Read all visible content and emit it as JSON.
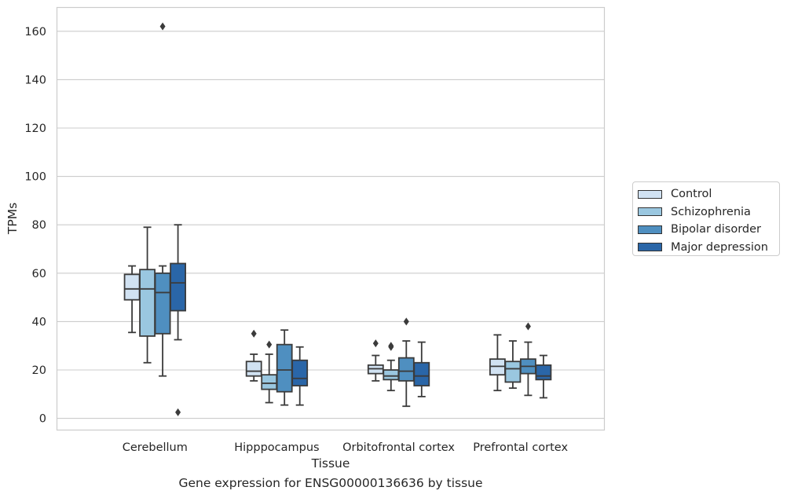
{
  "chart_data": {
    "type": "box",
    "xlabel": "Tissue",
    "ylabel": "TPMs",
    "caption": "Gene expression for ENSG00000136636 by tissue",
    "ylim": [
      -5,
      170
    ],
    "yticks": [
      0,
      20,
      40,
      60,
      80,
      100,
      120,
      140,
      160
    ],
    "grid": true,
    "legend_position": "right",
    "categories": [
      "Cerebellum",
      "Hipppocampus",
      "Orbitofrontal cortex",
      "Prefrontal cortex"
    ],
    "series": [
      {
        "name": "Control",
        "color": "#d1e2f2",
        "boxes": [
          {
            "whislo": 35.5,
            "q1": 49,
            "med": 53.5,
            "q3": 59.5,
            "whishi": 63,
            "fliers": []
          },
          {
            "whislo": 15.5,
            "q1": 17.5,
            "med": 19.5,
            "q3": 23.5,
            "whishi": 26.5,
            "fliers": [
              35
            ]
          },
          {
            "whislo": 15.5,
            "q1": 18.5,
            "med": 20.5,
            "q3": 22,
            "whishi": 26,
            "fliers": [
              31
            ]
          },
          {
            "whislo": 11.5,
            "q1": 18,
            "med": 21.5,
            "q3": 24.5,
            "whishi": 34.5,
            "fliers": []
          }
        ]
      },
      {
        "name": "Schizophrenia",
        "color": "#9ac7e0",
        "boxes": [
          {
            "whislo": 23,
            "q1": 34,
            "med": 53.5,
            "q3": 61.5,
            "whishi": 79,
            "fliers": []
          },
          {
            "whislo": 6.5,
            "q1": 12,
            "med": 14.5,
            "q3": 18,
            "whishi": 26.5,
            "fliers": [
              30.5
            ]
          },
          {
            "whislo": 11.5,
            "q1": 16,
            "med": 17.5,
            "q3": 20,
            "whishi": 24,
            "fliers": [
              30,
              29.5
            ]
          },
          {
            "whislo": 12.5,
            "q1": 15,
            "med": 20.5,
            "q3": 23.5,
            "whishi": 32,
            "fliers": []
          }
        ]
      },
      {
        "name": "Bipolar disorder",
        "color": "#4f8fc0",
        "boxes": [
          {
            "whislo": 17.5,
            "q1": 35,
            "med": 52,
            "q3": 60,
            "whishi": 63,
            "fliers": [
              162
            ]
          },
          {
            "whislo": 5.5,
            "q1": 11,
            "med": 20,
            "q3": 30.5,
            "whishi": 36.5,
            "fliers": []
          },
          {
            "whislo": 5,
            "q1": 15.5,
            "med": 19.5,
            "q3": 25,
            "whishi": 32,
            "fliers": [
              40
            ]
          },
          {
            "whislo": 9.5,
            "q1": 18.5,
            "med": 21.5,
            "q3": 24.5,
            "whishi": 31.5,
            "fliers": [
              38
            ]
          }
        ]
      },
      {
        "name": "Major depression",
        "color": "#2a66a8",
        "boxes": [
          {
            "whislo": 32.5,
            "q1": 44.5,
            "med": 56,
            "q3": 64,
            "whishi": 80,
            "fliers": [
              2.5
            ]
          },
          {
            "whislo": 5.5,
            "q1": 13.5,
            "med": 16.5,
            "q3": 24,
            "whishi": 29.5,
            "fliers": []
          },
          {
            "whislo": 9,
            "q1": 13.5,
            "med": 17.5,
            "q3": 23,
            "whishi": 31.5,
            "fliers": []
          },
          {
            "whislo": 8.5,
            "q1": 16,
            "med": 17.5,
            "q3": 22,
            "whishi": 26,
            "fliers": []
          }
        ]
      }
    ]
  }
}
